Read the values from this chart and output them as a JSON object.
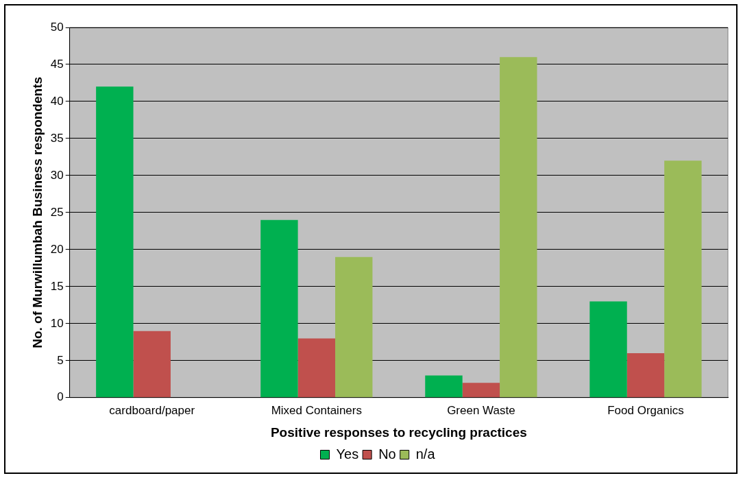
{
  "chart_data": {
    "type": "bar",
    "xlabel": "Positive responses to recycling practices",
    "ylabel": "No. of Murwillumbah Business respondents",
    "categories": [
      "cardboard/paper",
      "Mixed Containers",
      "Green Waste",
      "Food Organics"
    ],
    "series": [
      {
        "name": "Yes",
        "color": "#00b050",
        "values": [
          42,
          24,
          3,
          13
        ]
      },
      {
        "name": "No",
        "color": "#c0504d",
        "values": [
          9,
          8,
          2,
          6
        ]
      },
      {
        "name": "n/a",
        "color": "#9bbb59",
        "values": [
          null,
          19,
          46,
          32
        ]
      }
    ],
    "ylim": [
      0,
      50
    ],
    "yticks": [
      0,
      5,
      10,
      15,
      20,
      25,
      30,
      35,
      40,
      45,
      50
    ],
    "grid": "y",
    "legend": "bottom"
  }
}
